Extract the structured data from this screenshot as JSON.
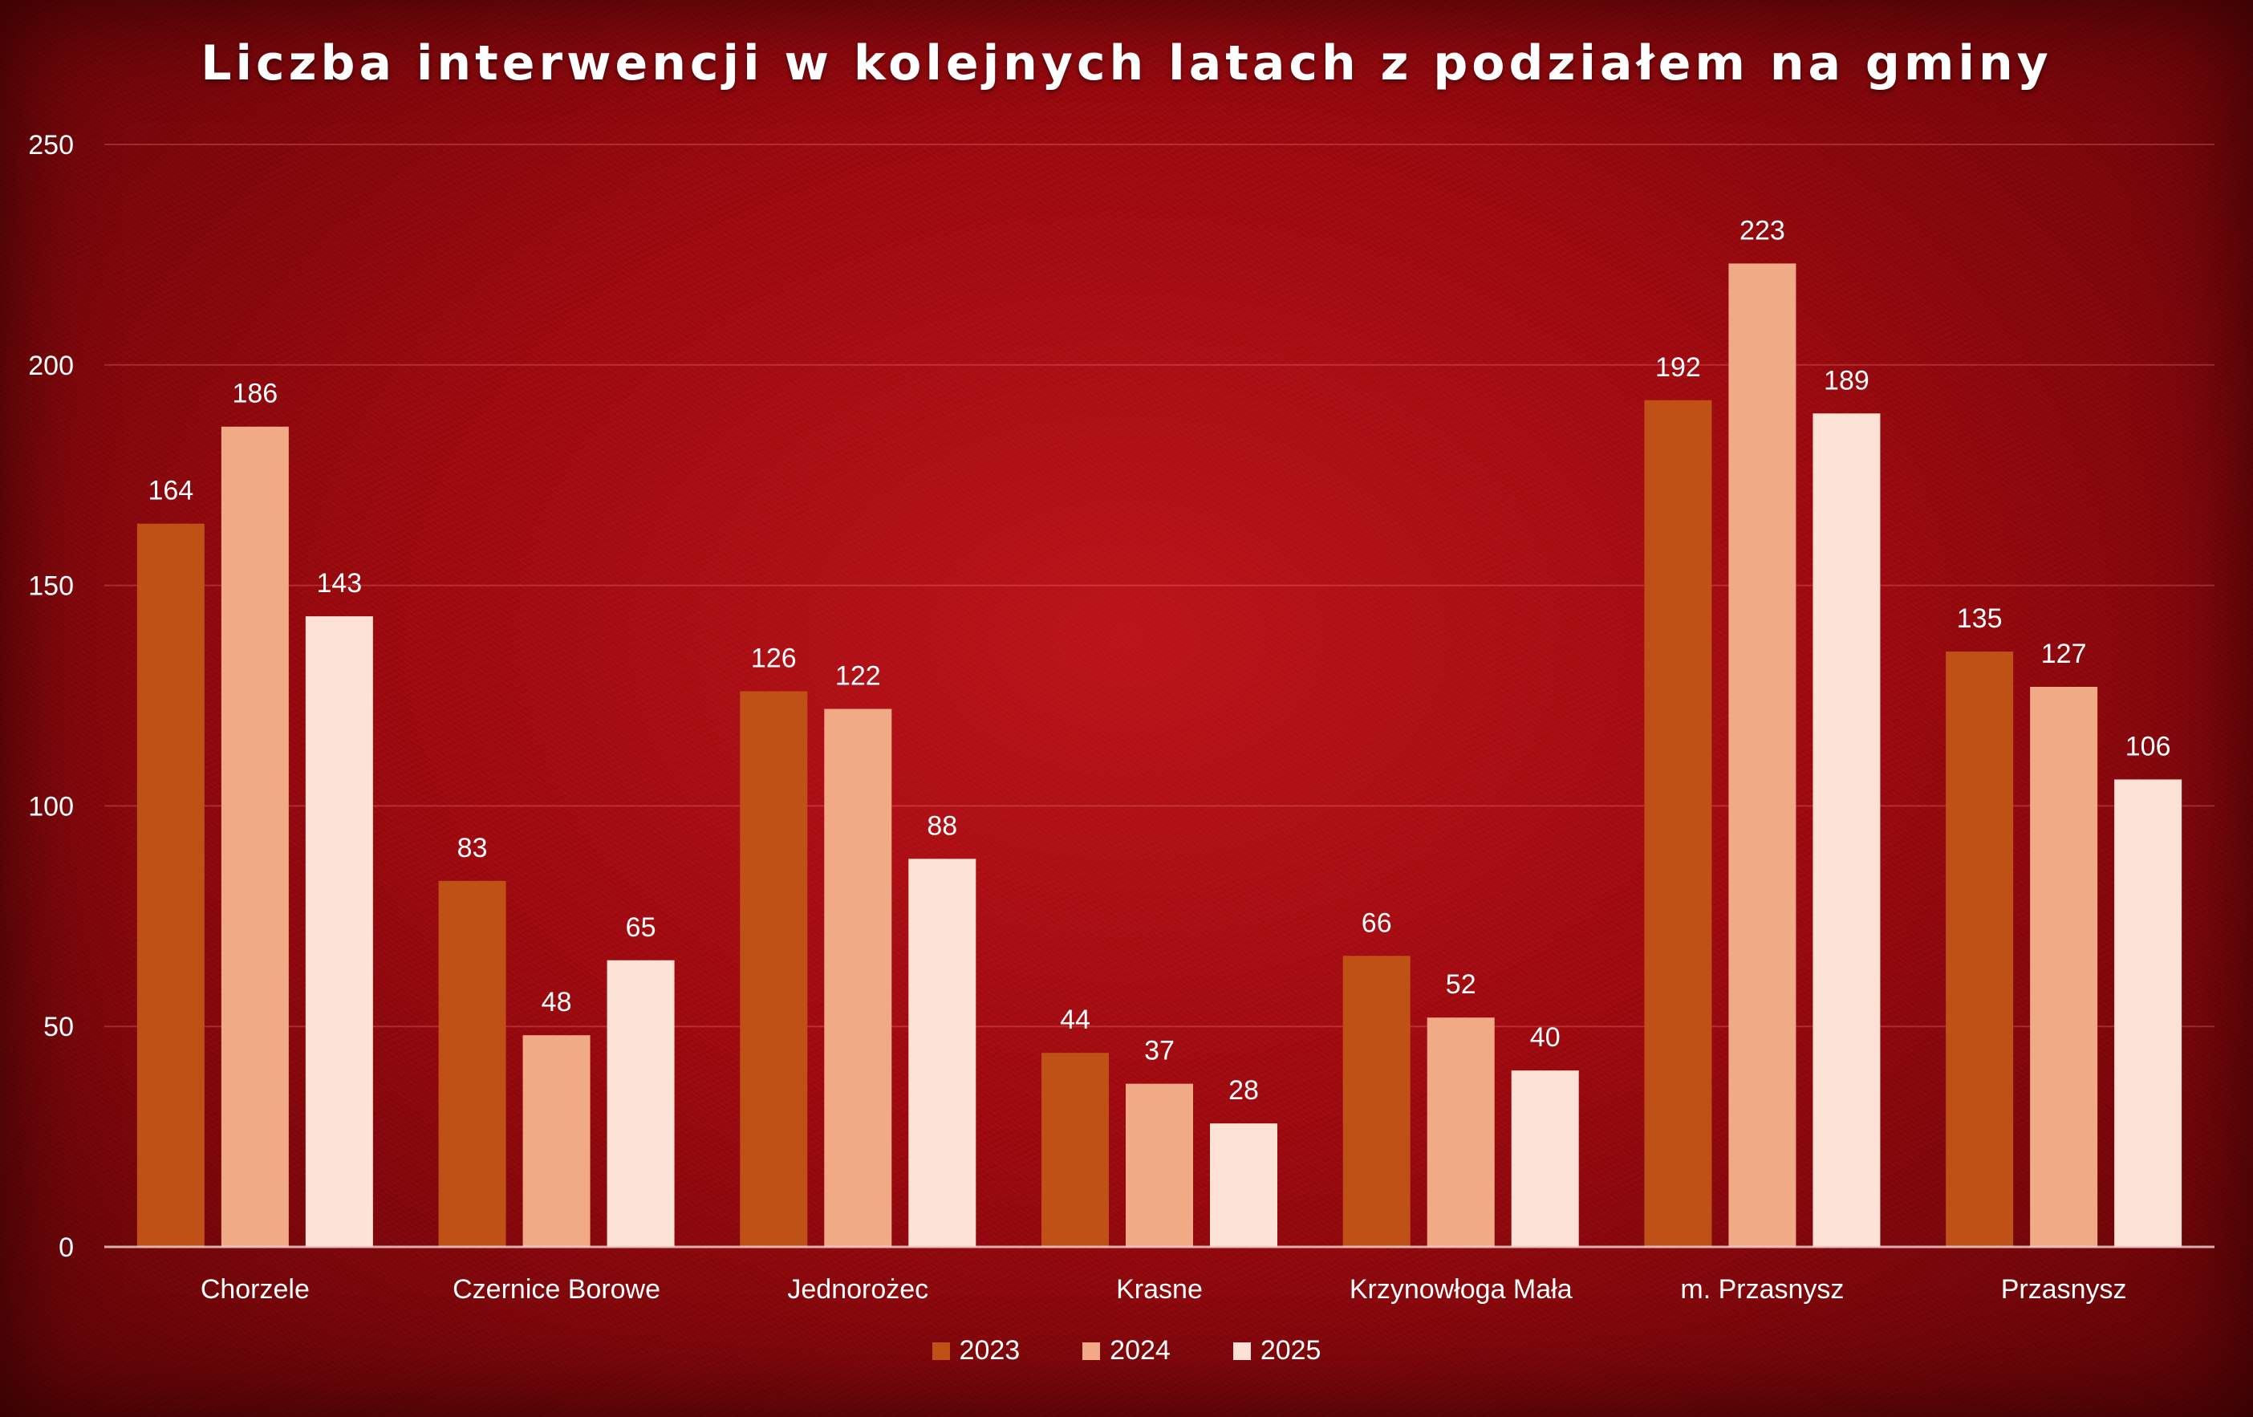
{
  "chart_data": {
    "type": "bar",
    "title": "Liczba interwencji w kolejnych latach z podziałem na gminy",
    "categories": [
      "Chorzele",
      "Czernice Borowe",
      "Jednorożec",
      "Krasne",
      "Krzynowłoga Mała",
      "m. Przasnysz",
      "Przasnysz"
    ],
    "series": [
      {
        "name": "2023",
        "color": "#bf5016",
        "values": [
          164,
          83,
          126,
          44,
          66,
          192,
          135
        ]
      },
      {
        "name": "2024",
        "color": "#f0aa86",
        "values": [
          186,
          48,
          122,
          37,
          52,
          223,
          127
        ]
      },
      {
        "name": "2025",
        "color": "#fbe2d4",
        "values": [
          143,
          65,
          88,
          28,
          40,
          189,
          106
        ]
      }
    ],
    "ylim": [
      0,
      250
    ],
    "yticks": [
      "0",
      "50",
      "100",
      "150",
      "200",
      "250"
    ],
    "xlabel": "",
    "ylabel": "",
    "grid": true,
    "data_labels": true,
    "legend_position": "bottom"
  }
}
